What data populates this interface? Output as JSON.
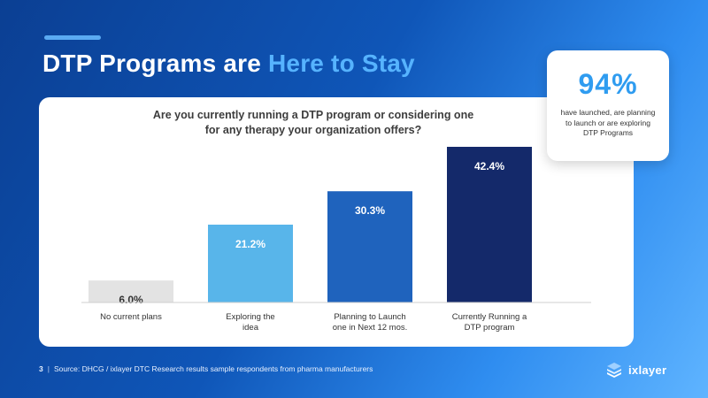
{
  "header": {
    "title_part1": "DTP Programs are ",
    "title_part2": "Here to Stay"
  },
  "stat": {
    "value": "94%",
    "text": "have launched, are planning to launch or are exploring DTP Programs"
  },
  "footer": {
    "page_number": "3",
    "separator": "|",
    "source": "Source: DHCG / ixlayer DTC Research results sample respondents from pharma manufacturers"
  },
  "logo": {
    "text": "ixlayer"
  },
  "colors": {
    "background": "#0f56b8",
    "title_highlight": "#56b3ff",
    "stat_value": "#2f9cf0"
  },
  "chart_data": {
    "type": "bar",
    "title": "Are you currently running a DTP program or considering one for any therapy your organization offers?",
    "categories": [
      [
        "No current plans"
      ],
      [
        "Exploring the",
        "idea"
      ],
      [
        "Planning to Launch",
        "one in Next 12 mos."
      ],
      [
        "Currently Running a",
        "DTP program"
      ]
    ],
    "values": [
      6.0,
      21.2,
      30.3,
      42.4
    ],
    "value_labels": [
      "6.0%",
      "21.2%",
      "30.3%",
      "42.4%"
    ],
    "bar_colors": [
      "#e3e3e3",
      "#58b5ea",
      "#1f63bd",
      "#14296a"
    ],
    "label_colors": [
      "#333333",
      "#ffffff",
      "#ffffff",
      "#ffffff"
    ],
    "ylim": [
      0,
      42.4
    ],
    "grid": false,
    "legend": "none"
  }
}
